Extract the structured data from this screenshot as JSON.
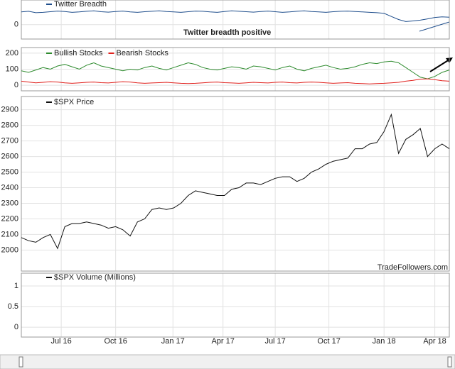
{
  "chart_data": [
    {
      "type": "line",
      "annotation": "Twitter breadth positive",
      "ylim": [
        -70,
        120
      ],
      "yticks": [
        0
      ],
      "series": [
        {
          "name": "Twitter Breadth",
          "color": "#1f4e8c",
          "values": [
            62,
            65,
            58,
            60,
            63,
            66,
            64,
            60,
            62,
            65,
            67,
            63,
            61,
            64,
            66,
            62,
            60,
            63,
            65,
            67,
            64,
            62,
            60,
            63,
            66,
            65,
            62,
            60,
            64,
            67,
            65,
            63,
            61,
            64,
            66,
            63,
            60,
            62,
            65,
            67,
            64,
            62,
            60,
            63,
            65,
            66,
            64,
            62,
            60,
            58,
            55,
            40,
            25,
            15,
            18,
            22,
            28,
            35,
            38,
            36
          ]
        }
      ]
    },
    {
      "type": "line",
      "ylim": [
        -35,
        235
      ],
      "yticks": [
        0,
        100,
        200
      ],
      "series": [
        {
          "name": "Bullish Stocks",
          "color": "#2e8b2e",
          "values": [
            90,
            80,
            95,
            110,
            100,
            120,
            130,
            115,
            100,
            125,
            140,
            120,
            110,
            100,
            90,
            100,
            95,
            110,
            120,
            105,
            95,
            110,
            125,
            140,
            130,
            110,
            100,
            95,
            105,
            115,
            110,
            100,
            120,
            115,
            105,
            95,
            110,
            120,
            100,
            90,
            105,
            115,
            125,
            110,
            100,
            105,
            115,
            130,
            140,
            135,
            145,
            150,
            140,
            110,
            80,
            50,
            40,
            55,
            80,
            95
          ]
        },
        {
          "name": "Bearish Stocks",
          "color": "#e0201c",
          "values": [
            25,
            20,
            15,
            18,
            22,
            20,
            15,
            12,
            15,
            18,
            20,
            16,
            14,
            18,
            22,
            20,
            15,
            12,
            14,
            16,
            18,
            15,
            12,
            10,
            12,
            15,
            18,
            20,
            16,
            14,
            12,
            15,
            18,
            16,
            14,
            18,
            20,
            16,
            14,
            18,
            20,
            18,
            15,
            12,
            14,
            16,
            12,
            10,
            8,
            10,
            12,
            15,
            18,
            25,
            30,
            38,
            40,
            35,
            28,
            25
          ]
        }
      ]
    },
    {
      "type": "line",
      "annotation": "TradeFollowers.com",
      "ylim": [
        1865,
        2985
      ],
      "yticks": [
        2000,
        2100,
        2200,
        2300,
        2400,
        2500,
        2600,
        2700,
        2800,
        2900
      ],
      "series": [
        {
          "name": "$SPX Price",
          "color": "#111111",
          "values": [
            2080,
            2060,
            2050,
            2080,
            2100,
            2010,
            2150,
            2170,
            2170,
            2180,
            2170,
            2160,
            2140,
            2150,
            2130,
            2090,
            2180,
            2200,
            2260,
            2270,
            2260,
            2270,
            2300,
            2350,
            2380,
            2370,
            2360,
            2350,
            2350,
            2390,
            2400,
            2430,
            2430,
            2420,
            2440,
            2460,
            2470,
            2470,
            2440,
            2460,
            2500,
            2520,
            2550,
            2570,
            2580,
            2590,
            2650,
            2650,
            2680,
            2690,
            2760,
            2870,
            2620,
            2710,
            2740,
            2780,
            2600,
            2650,
            2680,
            2650
          ]
        }
      ]
    },
    {
      "type": "line",
      "ylim": [
        -0.24,
        1.31
      ],
      "yticks": [
        0,
        0.5,
        1
      ],
      "series": [
        {
          "name": "$SPX Volume (Millions)",
          "color": "#111111"
        }
      ],
      "xlim": [
        0,
        59
      ],
      "xticks": [
        {
          "value": 5.5,
          "label": "Jul 16"
        },
        {
          "value": 13,
          "label": "Oct 16"
        },
        {
          "value": 20.9,
          "label": "Jan 17"
        },
        {
          "value": 27.8,
          "label": "Apr 17"
        },
        {
          "value": 35,
          "label": "Jul 17"
        },
        {
          "value": 42.4,
          "label": "Oct 17"
        },
        {
          "value": 50,
          "label": "Jan 18"
        },
        {
          "value": 57,
          "label": "Apr 18"
        }
      ]
    }
  ]
}
